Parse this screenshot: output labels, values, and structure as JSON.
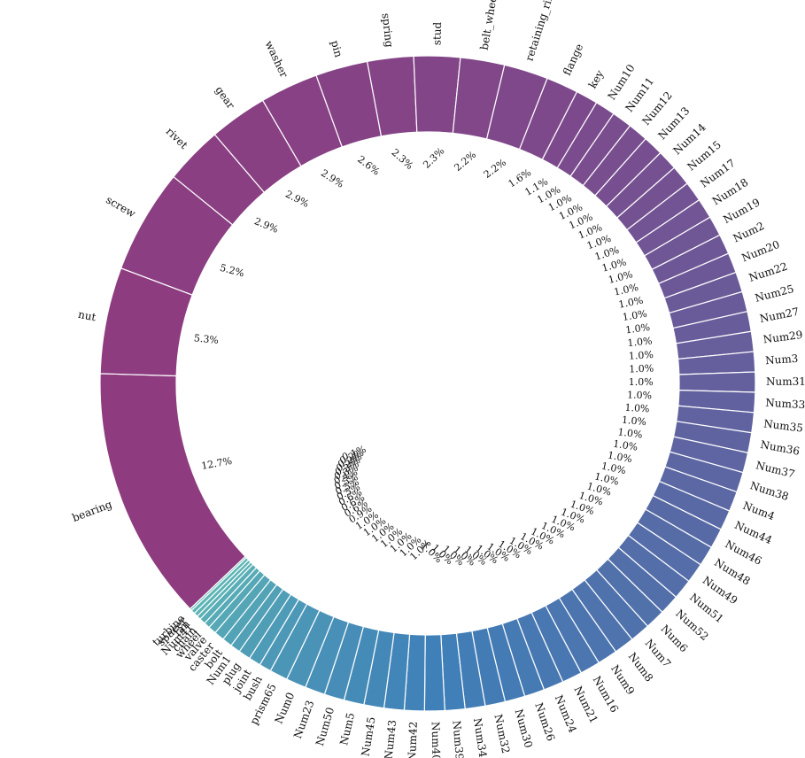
{
  "chart_data": {
    "type": "pie",
    "variant": "donut",
    "labels": [
      "bearing",
      "nut",
      "screw",
      "rivet",
      "gear",
      "washer",
      "pin",
      "spring",
      "stud",
      "belt_wheel",
      "retaining_ring",
      "flange",
      "key",
      "Num10",
      "Num11",
      "Num12",
      "Num13",
      "Num14",
      "Num15",
      "Num17",
      "Num18",
      "Num19",
      "Num2",
      "Num20",
      "Num22",
      "Num25",
      "Num27",
      "Num29",
      "Num3",
      "Num31",
      "Num33",
      "Num35",
      "Num36",
      "Num37",
      "Num38",
      "Num4",
      "Num44",
      "Num46",
      "Num48",
      "Num49",
      "Num51",
      "Num52",
      "Num6",
      "Num7",
      "Num8",
      "Num9",
      "Num16",
      "Num21",
      "Num24",
      "Num26",
      "Num30",
      "Num32",
      "Num34",
      "Num39",
      "Num40",
      "Num42",
      "Num43",
      "Num45",
      "Num5",
      "Num50",
      "Num23",
      "Num0",
      "prism65",
      "bush",
      "joint",
      "plug",
      "Num1",
      "bolt",
      "caster",
      "valve",
      "wheel",
      "chain",
      "Num41",
      "fan",
      "spacer",
      "turbine"
    ],
    "values": [
      12.7,
      5.3,
      5.2,
      2.9,
      2.9,
      2.9,
      2.6,
      2.3,
      2.3,
      2.2,
      2.2,
      1.6,
      1.1,
      1.0,
      1.0,
      1.0,
      1.0,
      1.0,
      1.0,
      1.0,
      1.0,
      1.0,
      1.0,
      1.0,
      1.0,
      1.0,
      1.0,
      1.0,
      1.0,
      1.0,
      1.0,
      1.0,
      1.0,
      1.0,
      1.0,
      1.0,
      1.0,
      1.0,
      1.0,
      1.0,
      1.0,
      1.0,
      1.0,
      1.0,
      1.0,
      1.0,
      1.0,
      1.0,
      1.0,
      1.0,
      1.0,
      1.0,
      1.0,
      1.0,
      1.0,
      1.0,
      1.0,
      1.0,
      1.0,
      1.0,
      1.0,
      1.0,
      0.9,
      0.6,
      0.6,
      0.6,
      0.5,
      0.5,
      0.5,
      0.4,
      0.3,
      0.3,
      0.2,
      0.2,
      0.2,
      0.1
    ],
    "percent_labels": [
      "12.7%",
      "5.3%",
      "5.2%",
      "2.9%",
      "2.9%",
      "2.9%",
      "2.6%",
      "2.3%",
      "2.3%",
      "2.2%",
      "2.2%",
      "1.6%",
      "1.1%",
      "1.0%",
      "1.0%",
      "1.0%",
      "1.0%",
      "1.0%",
      "1.0%",
      "1.0%",
      "1.0%",
      "1.0%",
      "1.0%",
      "1.0%",
      "1.0%",
      "1.0%",
      "1.0%",
      "1.0%",
      "1.0%",
      "1.0%",
      "1.0%",
      "1.0%",
      "1.0%",
      "1.0%",
      "1.0%",
      "1.0%",
      "1.0%",
      "1.0%",
      "1.0%",
      "1.0%",
      "1.0%",
      "1.0%",
      "1.0%",
      "1.0%",
      "1.0%",
      "1.0%",
      "1.0%",
      "1.0%",
      "1.0%",
      "1.0%",
      "1.0%",
      "1.0%",
      "1.0%",
      "1.0%",
      "1.0%",
      "1.0%",
      "1.0%",
      "1.0%",
      "1.0%",
      "1.0%",
      "1.0%",
      "1.0%",
      "0.9%",
      "0.6%",
      "0.6%",
      "0.6%",
      "0.5%",
      "0.5%",
      "0.5%",
      "0.4%",
      "0.3%",
      "0.3%",
      "0.2%",
      "0.2%",
      "0.2%",
      "0.1%"
    ],
    "start_direction": "left, clockwise",
    "color_scale": {
      "from": "#8e3b7f",
      "to": "#3f80b8",
      "end": "#5fb8b5"
    },
    "legend": "none",
    "title": ""
  }
}
